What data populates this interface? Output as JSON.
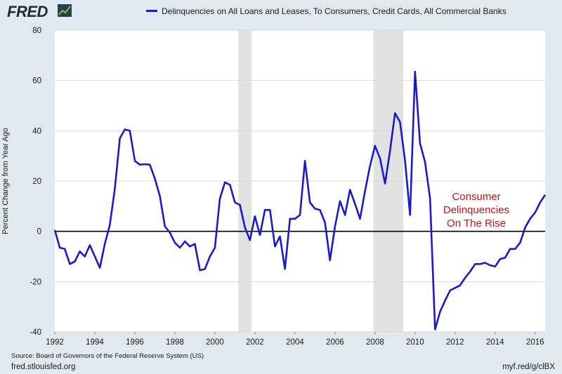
{
  "header": {
    "logo_text": "FRED",
    "logo_icon": "chart-line-icon",
    "legend_label": "Delinquencies on All Loans and Leases, To Consumers, Credit Cards, All Commercial Banks"
  },
  "colors": {
    "background": "#e1e9f0",
    "plot_background": "#ffffff",
    "series": "#1a1acc",
    "recession": "#e2e2e2",
    "annotation": "#cc1111"
  },
  "annotation": {
    "text": "Consumer\nDelinquencies\nOn The Rise"
  },
  "footer": {
    "source": "Source: Board of Governors of the Federal Reserve System (US)",
    "site": "fred.stlouisfed.org",
    "shortlink": "myf.red/g/clBX"
  },
  "chart_data": {
    "type": "line",
    "title": "",
    "xlabel": "",
    "ylabel": "Percent Change from Year Ago",
    "xlim": [
      1992.0,
      2016.5
    ],
    "ylim": [
      -40,
      80
    ],
    "x_ticks": [
      "1992",
      "1994",
      "1996",
      "1998",
      "2000",
      "2002",
      "2004",
      "2006",
      "2008",
      "2010",
      "2012",
      "2014",
      "2016"
    ],
    "y_ticks": [
      "-40",
      "-20",
      "0",
      "20",
      "40",
      "60",
      "80"
    ],
    "grid": "horizontal",
    "zero_line": true,
    "recessions": [
      [
        2001.17,
        2001.83
      ],
      [
        2007.92,
        2009.42
      ]
    ],
    "series": [
      {
        "name": "Delinquencies on All Loans and Leases, To Consumers, Credit Cards, All Commercial Banks",
        "points": [
          [
            1992.0,
            0.5
          ],
          [
            1992.25,
            -6.5
          ],
          [
            1992.5,
            -7
          ],
          [
            1992.75,
            -13
          ],
          [
            1993.0,
            -12
          ],
          [
            1993.25,
            -8
          ],
          [
            1993.5,
            -10
          ],
          [
            1993.75,
            -5.5
          ],
          [
            1994.0,
            -10
          ],
          [
            1994.25,
            -14.5
          ],
          [
            1994.5,
            -5
          ],
          [
            1994.75,
            2.5
          ],
          [
            1995.0,
            17
          ],
          [
            1995.25,
            37
          ],
          [
            1995.5,
            40.5
          ],
          [
            1995.75,
            40
          ],
          [
            1996.0,
            28
          ],
          [
            1996.25,
            26.5
          ],
          [
            1996.5,
            26.7
          ],
          [
            1996.75,
            26.5
          ],
          [
            1997.0,
            21
          ],
          [
            1997.25,
            14
          ],
          [
            1997.5,
            2
          ],
          [
            1997.75,
            -0.5
          ],
          [
            1998.0,
            -4.5
          ],
          [
            1998.25,
            -6.5
          ],
          [
            1998.5,
            -4
          ],
          [
            1998.75,
            -6
          ],
          [
            1999.0,
            -5
          ],
          [
            1999.25,
            -15.5
          ],
          [
            1999.5,
            -15
          ],
          [
            1999.75,
            -10
          ],
          [
            2000.0,
            -6.5
          ],
          [
            2000.25,
            13
          ],
          [
            2000.5,
            19.5
          ],
          [
            2000.75,
            18.5
          ],
          [
            2001.0,
            11.5
          ],
          [
            2001.25,
            10.5
          ],
          [
            2001.5,
            1.5
          ],
          [
            2001.75,
            -3.5
          ],
          [
            2002.0,
            6
          ],
          [
            2002.25,
            -1.5
          ],
          [
            2002.5,
            8.5
          ],
          [
            2002.75,
            8.5
          ],
          [
            2003.0,
            -6
          ],
          [
            2003.25,
            -2
          ],
          [
            2003.5,
            -15
          ],
          [
            2003.75,
            5
          ],
          [
            2004.0,
            5
          ],
          [
            2004.25,
            6.5
          ],
          [
            2004.5,
            28
          ],
          [
            2004.75,
            11.5
          ],
          [
            2005.0,
            9
          ],
          [
            2005.25,
            8.5
          ],
          [
            2005.5,
            3.5
          ],
          [
            2005.75,
            -11.5
          ],
          [
            2006.0,
            2
          ],
          [
            2006.25,
            12
          ],
          [
            2006.5,
            6.5
          ],
          [
            2006.75,
            16.5
          ],
          [
            2007.0,
            11
          ],
          [
            2007.25,
            5
          ],
          [
            2007.5,
            16
          ],
          [
            2007.75,
            26
          ],
          [
            2008.0,
            34
          ],
          [
            2008.25,
            29
          ],
          [
            2008.5,
            19
          ],
          [
            2008.75,
            32
          ],
          [
            2009.0,
            47
          ],
          [
            2009.25,
            43.5
          ],
          [
            2009.5,
            28
          ],
          [
            2009.75,
            6.5
          ],
          [
            2010.0,
            63.5
          ],
          [
            2010.25,
            35
          ],
          [
            2010.5,
            27.5
          ],
          [
            2010.75,
            13
          ],
          [
            2011.0,
            -39
          ],
          [
            2011.25,
            -32
          ],
          [
            2011.5,
            -27.5
          ],
          [
            2011.75,
            -23.5
          ],
          [
            2012.0,
            -22.5
          ],
          [
            2012.25,
            -21.5
          ],
          [
            2012.5,
            -18.5
          ],
          [
            2012.75,
            -16
          ],
          [
            2013.0,
            -13
          ],
          [
            2013.25,
            -13
          ],
          [
            2013.5,
            -12.5
          ],
          [
            2013.75,
            -13.5
          ],
          [
            2014.0,
            -14
          ],
          [
            2014.25,
            -11
          ],
          [
            2014.5,
            -10.5
          ],
          [
            2014.75,
            -7
          ],
          [
            2015.0,
            -7
          ],
          [
            2015.25,
            -4.5
          ],
          [
            2015.5,
            1.5
          ],
          [
            2015.75,
            5
          ],
          [
            2016.0,
            7.5
          ],
          [
            2016.25,
            11.5
          ],
          [
            2016.5,
            14.5
          ]
        ]
      }
    ]
  }
}
